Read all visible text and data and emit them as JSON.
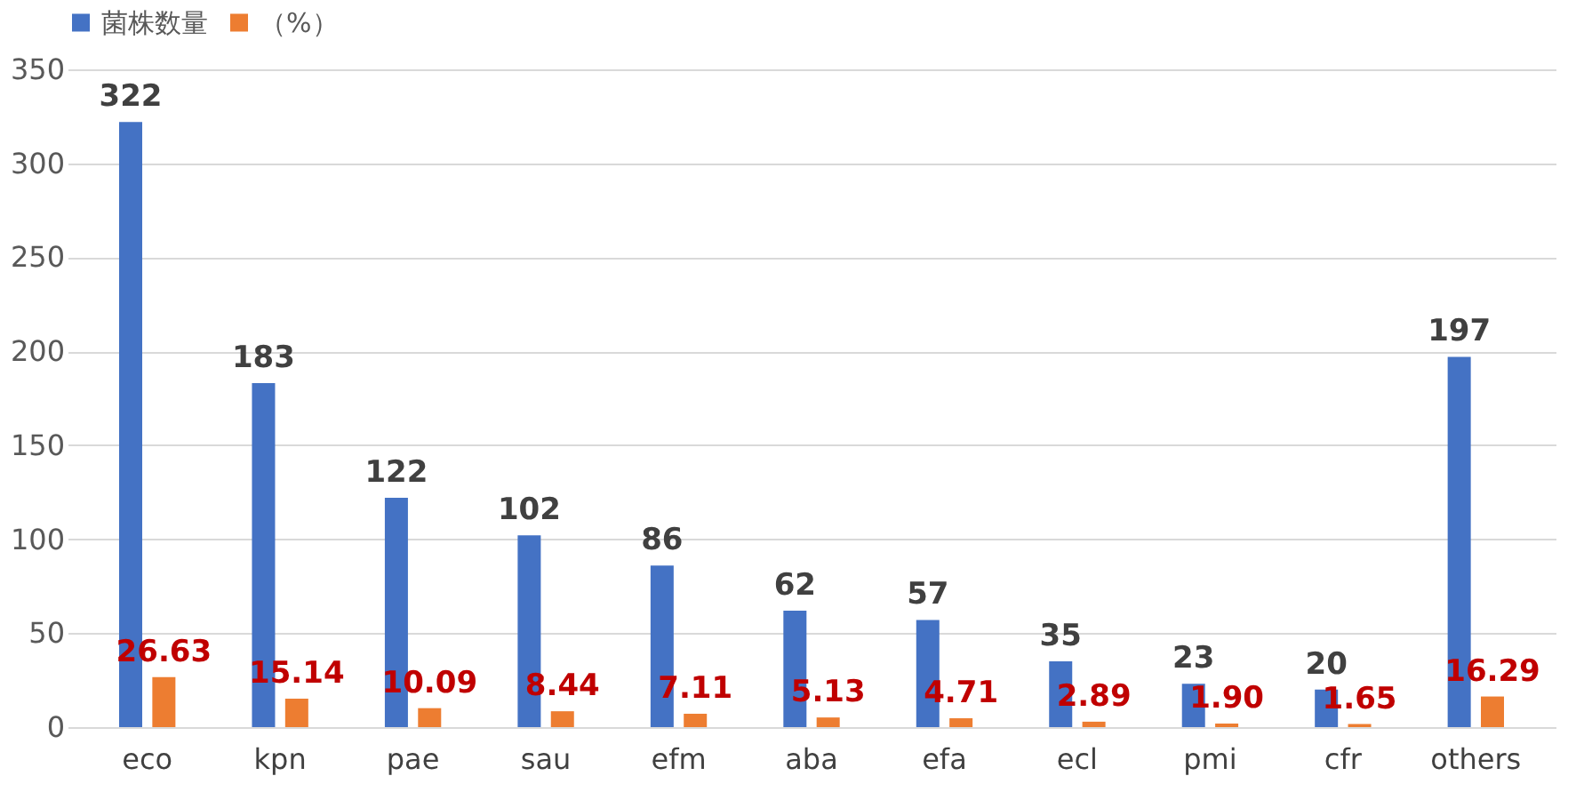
{
  "chart_data": {
    "type": "bar",
    "categories": [
      "eco",
      "kpn",
      "pae",
      "sau",
      "efm",
      "aba",
      "efa",
      "ecl",
      "pmi",
      "cfr",
      "others"
    ],
    "series": [
      {
        "name": "菌株数量",
        "color": "#4472c4",
        "values": [
          322,
          183,
          122,
          102,
          86,
          62,
          57,
          35,
          23,
          20,
          197
        ],
        "value_labels": [
          "322",
          "183",
          "122",
          "102",
          "86",
          "62",
          "57",
          "35",
          "23",
          "20",
          "197"
        ]
      },
      {
        "name": "（%）",
        "color": "#ed7d31",
        "values": [
          26.63,
          15.14,
          10.09,
          8.44,
          7.11,
          5.13,
          4.71,
          2.89,
          1.9,
          1.65,
          16.29
        ],
        "value_labels": [
          "26.63",
          "15.14",
          "10.09",
          "8.44",
          "7.11",
          "5.13",
          "4.71",
          "2.89",
          "1.90",
          "1.65",
          "16.29"
        ]
      }
    ],
    "ylim": [
      0,
      350
    ],
    "yticks": [
      0,
      50,
      100,
      150,
      200,
      250,
      300,
      350
    ],
    "grid": "y",
    "legend": "top",
    "data_labels": true
  }
}
